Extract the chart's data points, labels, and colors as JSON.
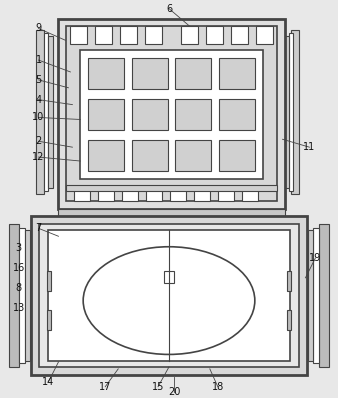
{
  "fig_width": 3.38,
  "fig_height": 3.98,
  "dpi": 100,
  "bg_color": "#e8e8e8",
  "line_color": "#444444",
  "label_color": "#111111",
  "label_fontsize": 7.0
}
